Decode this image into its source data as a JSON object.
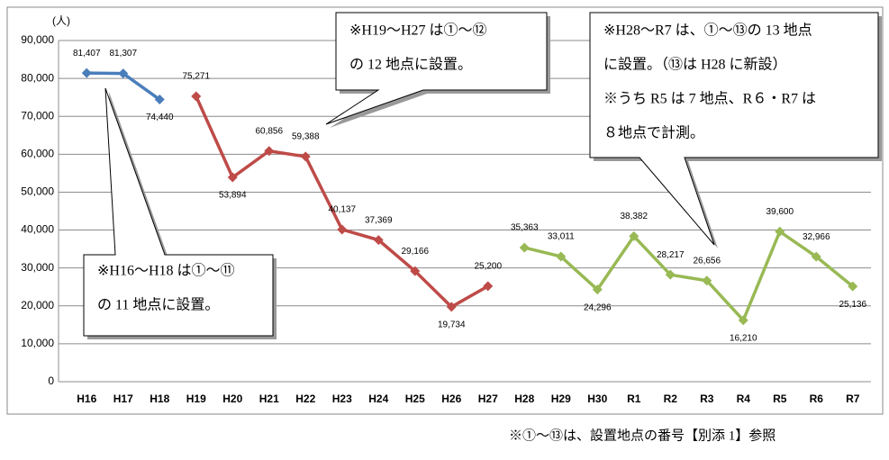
{
  "chart_data": {
    "type": "line",
    "y_unit": "(人)",
    "categories": [
      "H16",
      "H17",
      "H18",
      "H19",
      "H20",
      "H21",
      "H22",
      "H23",
      "H24",
      "H25",
      "H26",
      "H27",
      "H28",
      "H29",
      "H30",
      "R1",
      "R2",
      "R3",
      "R4",
      "R5",
      "R6",
      "R7"
    ],
    "series": [
      {
        "name": "H16～H18",
        "color": "#4a7ebb",
        "values": [
          81407,
          81307,
          74440,
          null,
          null,
          null,
          null,
          null,
          null,
          null,
          null,
          null,
          null,
          null,
          null,
          null,
          null,
          null,
          null,
          null,
          null,
          null
        ],
        "value_labels": [
          "81,407",
          "81,307",
          "74,440",
          null,
          null,
          null,
          null,
          null,
          null,
          null,
          null,
          null,
          null,
          null,
          null,
          null,
          null,
          null,
          null,
          null,
          null,
          null
        ]
      },
      {
        "name": "H19～H27",
        "color": "#be4b48",
        "values": [
          null,
          null,
          null,
          75271,
          53894,
          60856,
          59388,
          40137,
          37369,
          29166,
          19734,
          25200,
          null,
          null,
          null,
          null,
          null,
          null,
          null,
          null,
          null,
          null
        ],
        "value_labels": [
          null,
          null,
          null,
          "75,271",
          "53,894",
          "60,856",
          "59,388",
          "40,137",
          "37,369",
          "29,166",
          "19,734",
          "25,200",
          null,
          null,
          null,
          null,
          null,
          null,
          null,
          null,
          null,
          null
        ]
      },
      {
        "name": "H28～R7",
        "color": "#98b954",
        "last_label_color": "#e8302a",
        "values": [
          null,
          null,
          null,
          null,
          null,
          null,
          null,
          null,
          null,
          null,
          null,
          null,
          35363,
          33011,
          24296,
          38382,
          28217,
          26656,
          16210,
          39600,
          32966,
          25136
        ],
        "value_labels": [
          null,
          null,
          null,
          null,
          null,
          null,
          null,
          null,
          null,
          null,
          null,
          null,
          "35,363",
          "33,011",
          "24,296",
          "38,382",
          "28,217",
          "26,656",
          "16,210",
          "39,600",
          "32,966",
          "25,136"
        ]
      }
    ],
    "ylim": [
      0,
      90000
    ],
    "yticks": [
      0,
      {
        "value": 10000,
        "label": "10,000"
      },
      {
        "value": 20000,
        "label": "20,000"
      },
      {
        "value": 30000,
        "label": "30,000"
      },
      {
        "value": 40000,
        "label": "40,000"
      },
      {
        "value": 50000,
        "label": "50,000"
      },
      {
        "value": 60000,
        "label": "60,000"
      },
      {
        "value": 70000,
        "label": "70,000"
      },
      {
        "value": 80000,
        "label": "80,000"
      },
      {
        "value": 90000,
        "label": "90,000"
      }
    ],
    "grid": true,
    "annotations": [
      [
        "※H16～H18 は①～⑪",
        "の 11 地点に設置。"
      ],
      [
        "※H19～H27 は①～⑫",
        "の 12 地点に設置。"
      ],
      [
        "※H28～R7 は、①～⑬の 13 地点",
        "に設置。（⑬は H28 に新設）",
        "※うち R5 は 7 地点、R６・R7 は",
        "８地点で計測。"
      ]
    ],
    "footnote": "※①～⑬は、設置地点の番号【別添 1】参照"
  }
}
